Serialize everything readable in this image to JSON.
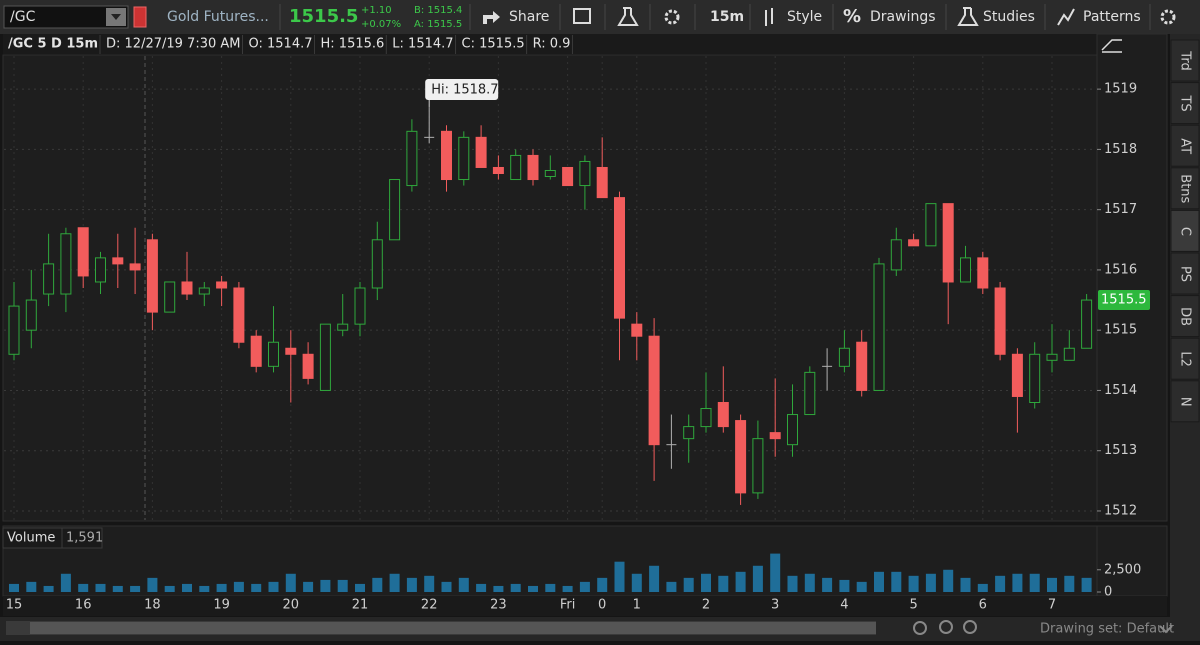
{
  "toolbar": {
    "symbol": "/GC",
    "description": "Gold Futures...",
    "last": "1515.5",
    "change": "+1.10",
    "change_pct": "+0.07%",
    "bid": "B: 1515.4",
    "ask": "A: 1515.5",
    "share": "Share",
    "interval": "15m",
    "style": "Style",
    "drawings_icon": "%",
    "drawings": "Drawings",
    "studies": "Studies",
    "patterns": "Patterns"
  },
  "info": [
    "/GC 5 D 15m",
    "D: 12/27/19 7:30 AM",
    "O: 1514.7",
    "H: 1515.6",
    "L: 1514.7",
    "C: 1515.5",
    "R: 0.9"
  ],
  "side_tabs": [
    "Trd",
    "TS",
    "AT",
    "Btns",
    "C",
    "PS",
    "DB",
    "L2",
    "N"
  ],
  "chart_data": {
    "type": "candlestick",
    "categories": [
      "15",
      null,
      null,
      null,
      "16",
      null,
      null,
      null,
      "18",
      null,
      null,
      null,
      "19",
      null,
      null,
      null,
      "20",
      null,
      null,
      null,
      "21",
      null,
      null,
      null,
      "22",
      null,
      null,
      null,
      "23",
      null,
      null,
      null,
      "Fri",
      null,
      "0",
      null,
      "1",
      null,
      null,
      null,
      "2",
      null,
      null,
      null,
      "3",
      null,
      null,
      null,
      "4",
      null,
      null,
      null,
      "5",
      null,
      null,
      null,
      "6",
      null,
      null,
      null,
      "7",
      null,
      null
    ],
    "open": [
      1514.6,
      1515.0,
      1515.6,
      1515.6,
      1516.7,
      1515.8,
      1516.2,
      1516.1,
      1516.5,
      1515.3,
      1515.8,
      1515.6,
      1515.8,
      1515.7,
      1514.9,
      1514.4,
      1514.7,
      1514.6,
      1514.0,
      1515.0,
      1515.1,
      1515.7,
      1516.5,
      1517.4,
      1518.2,
      1518.3,
      1517.5,
      1518.2,
      1517.7,
      1517.5,
      1517.9,
      1517.55,
      1517.7,
      1517.4,
      1517.7,
      1517.2,
      1515.1,
      1514.9,
      1513.1,
      1513.2,
      1513.4,
      1513.8,
      1513.5,
      1512.3,
      1513.3,
      1513.1,
      1513.6,
      1514.4,
      1514.4,
      1514.8,
      1514.0,
      1516.0,
      1516.5,
      1516.4,
      1517.1,
      1515.8,
      1516.2,
      1515.7,
      1514.6,
      1513.8,
      1514.5,
      1514.5,
      1514.7
    ],
    "high": [
      1515.8,
      1516.0,
      1516.6,
      1516.7,
      1516.7,
      1516.3,
      1516.6,
      1516.7,
      1516.6,
      1515.8,
      1516.3,
      1515.8,
      1515.9,
      1515.8,
      1515.0,
      1515.4,
      1515.0,
      1514.8,
      1515.1,
      1515.6,
      1515.8,
      1516.8,
      1517.5,
      1518.5,
      1518.7,
      1518.4,
      1518.3,
      1518.4,
      1517.9,
      1518.0,
      1518.0,
      1517.9,
      1517.7,
      1517.9,
      1518.2,
      1517.3,
      1515.3,
      1515.2,
      1513.6,
      1513.6,
      1514.3,
      1514.4,
      1513.6,
      1513.5,
      1514.2,
      1514.1,
      1514.4,
      1514.7,
      1515.0,
      1515.0,
      1516.2,
      1516.7,
      1516.6,
      1517.1,
      1517.1,
      1516.4,
      1516.3,
      1515.8,
      1514.7,
      1514.8,
      1515.1,
      1515.0,
      1515.6
    ],
    "low": [
      1514.5,
      1514.7,
      1515.4,
      1515.3,
      1515.7,
      1515.6,
      1515.7,
      1515.6,
      1515.0,
      1515.3,
      1515.5,
      1515.4,
      1515.4,
      1514.7,
      1514.3,
      1514.3,
      1513.8,
      1514.1,
      1514.0,
      1514.9,
      1514.9,
      1515.5,
      1516.5,
      1517.3,
      1518.1,
      1517.3,
      1517.4,
      1517.7,
      1517.5,
      1517.5,
      1517.4,
      1517.5,
      1517.4,
      1517.0,
      1517.2,
      1514.5,
      1514.5,
      1512.5,
      1512.7,
      1512.8,
      1513.3,
      1513.3,
      1512.1,
      1512.2,
      1512.9,
      1512.9,
      1513.6,
      1514.0,
      1514.3,
      1513.9,
      1514.0,
      1515.9,
      1516.4,
      1516.4,
      1515.1,
      1515.8,
      1515.6,
      1514.5,
      1513.3,
      1513.7,
      1514.3,
      1514.5,
      1514.7
    ],
    "close": [
      1515.4,
      1515.5,
      1516.1,
      1516.6,
      1515.9,
      1516.2,
      1516.1,
      1516.0,
      1515.3,
      1515.8,
      1515.6,
      1515.7,
      1515.7,
      1514.8,
      1514.4,
      1514.8,
      1514.6,
      1514.2,
      1515.1,
      1515.1,
      1515.7,
      1516.5,
      1517.5,
      1518.3,
      1518.2,
      1517.5,
      1518.2,
      1517.7,
      1517.6,
      1517.9,
      1517.5,
      1517.65,
      1517.4,
      1517.8,
      1517.2,
      1515.2,
      1514.9,
      1513.1,
      1513.1,
      1513.4,
      1513.7,
      1513.4,
      1512.3,
      1513.2,
      1513.2,
      1513.6,
      1514.3,
      1514.4,
      1514.7,
      1514.0,
      1516.1,
      1516.5,
      1516.4,
      1517.1,
      1515.8,
      1516.2,
      1515.7,
      1514.6,
      1513.9,
      1514.6,
      1514.6,
      1514.7,
      1515.5
    ],
    "up_color": "#2fa83c",
    "down_color": "#f25c5c",
    "flat_color": "#b0b0b0",
    "ylim": [
      1511.85,
      1519.55
    ],
    "yticks": [
      1512,
      1513,
      1514,
      1515,
      1516,
      1517,
      1518,
      1519
    ],
    "grid": true,
    "high_label": "Hi: 1518.7",
    "last_price_label": "1515.5",
    "volume": {
      "label": "Volume",
      "last_label": "1,591",
      "color": "#1f6e99",
      "values": [
        910,
        1140,
        680,
        2050,
        910,
        910,
        680,
        680,
        1590,
        680,
        910,
        680,
        910,
        1140,
        910,
        1140,
        2050,
        1140,
        1360,
        1360,
        910,
        1590,
        2050,
        1590,
        1820,
        1140,
        1590,
        910,
        680,
        910,
        680,
        910,
        680,
        1140,
        1590,
        3410,
        2050,
        2950,
        1140,
        1590,
        2050,
        1820,
        2270,
        2950,
        4320,
        1820,
        2050,
        1590,
        1360,
        1140,
        2270,
        2270,
        1820,
        2050,
        2500,
        1590,
        910,
        1820,
        2050,
        2050,
        1590,
        1820,
        1591
      ],
      "ylim": [
        0,
        4500
      ],
      "yticks": [
        {
          "value": 2500,
          "label": "2,500"
        },
        0
      ]
    }
  },
  "footer": {
    "drawing_set": "Drawing set: Default"
  }
}
